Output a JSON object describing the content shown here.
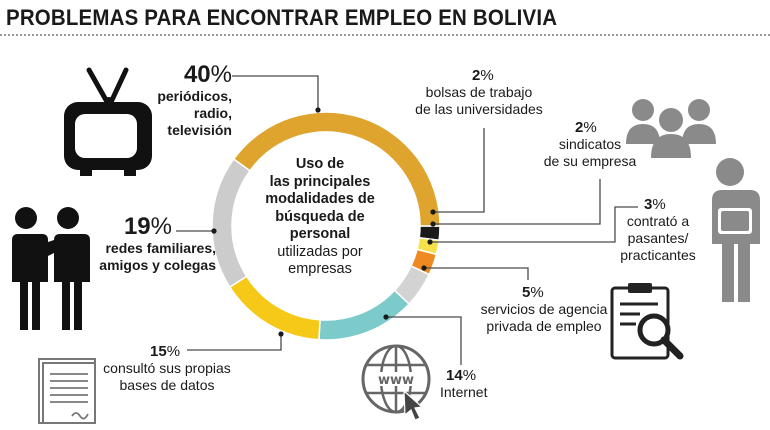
{
  "title": "PROBLEMAS PARA ENCONTRAR EMPLEO EN BOLIVIA",
  "center": {
    "line1": "Uso de",
    "line2": "las principales",
    "line3": "modalidades de",
    "line4": "búsqueda de",
    "line5": "personal",
    "line6": "utilizadas por",
    "line7": "empresas"
  },
  "labels": {
    "periodicos": {
      "value": "40",
      "unit": "%",
      "line1": "periódicos,",
      "line2": "radio,",
      "line3": "televisión"
    },
    "redes": {
      "value": "19",
      "unit": "%",
      "line1": "redes familiares,",
      "line2": "amigos y colegas"
    },
    "bases": {
      "value": "15",
      "unit": "%",
      "line1": "consultó sus propias",
      "line2": "bases de datos"
    },
    "internet": {
      "value": "14",
      "unit": "%",
      "line1": "Internet"
    },
    "agencia": {
      "value": "5",
      "unit": "%",
      "line1": "servicios de agencia",
      "line2": "privada de empleo"
    },
    "pasantes": {
      "value": "3",
      "unit": "%",
      "line1": "contrató a",
      "line2": "pasantes/",
      "line3": "practicantes"
    },
    "sindicatos": {
      "value": "2",
      "unit": "%",
      "line1": "sindicatos",
      "line2": "de su empresa"
    },
    "bolsas": {
      "value": "2",
      "unit": "%",
      "line1": "bolsas de trabajo",
      "line2": "de las universidades"
    }
  },
  "icons": {
    "tv": "television-icon",
    "people": "two-people-icon",
    "group": "group-icon",
    "worker": "worker-icon",
    "clipboard": "clipboard-search-icon",
    "document": "document-icon",
    "web": "www-globe-icon"
  },
  "chart_data": {
    "type": "pie",
    "donut": true,
    "categories": [
      "bolsas de trabajo de las universidades",
      "sindicatos de su empresa",
      "contrató a pasantes/ practicantes",
      "servicios de agencia privada de empleo",
      "Internet",
      "consultó sus propias bases de datos",
      "redes familiares, amigos y colegas",
      "periódicos, radio, televisión"
    ],
    "values": [
      2,
      2,
      3,
      5,
      14,
      15,
      19,
      40
    ],
    "colors": [
      "#1a1a1a",
      "#f5e24a",
      "#ee8a22",
      "#d3d3d3",
      "#7ccaca",
      "#f6c818",
      "#cccccc",
      "#dea42e"
    ],
    "start_angle_deg": 0,
    "unit": "%"
  }
}
